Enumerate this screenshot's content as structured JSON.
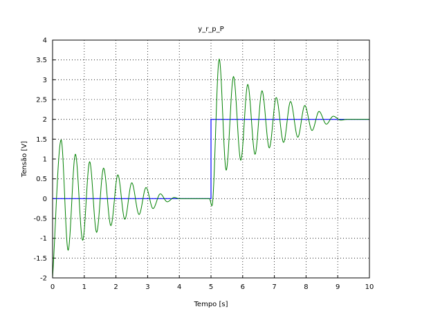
{
  "chart_data": {
    "type": "line",
    "title": "y_r_p_P",
    "xlabel": "Tempo [s]",
    "ylabel": "Tensão [V]",
    "xlim": [
      0,
      10
    ],
    "ylim": [
      -2,
      4
    ],
    "xticks": [
      "0",
      "1",
      "2",
      "3",
      "4",
      "5",
      "6",
      "7",
      "8",
      "9",
      "10"
    ],
    "yticks": [
      "-2",
      "-1.5",
      "-1",
      "-0.5",
      "0",
      "0.5",
      "1",
      "1.5",
      "2",
      "2.5",
      "3",
      "3.5",
      "4"
    ],
    "grid": true,
    "series": [
      {
        "role": "reference (step)",
        "color": "#0000ff",
        "x": [
          0,
          5,
          5,
          10
        ],
        "y": [
          0,
          0,
          2,
          2
        ]
      },
      {
        "role": "response",
        "color": "#008000",
        "x": [
          0,
          0.27,
          0.49,
          0.72,
          0.95,
          1.17,
          1.39,
          1.61,
          1.84,
          2.06,
          2.28,
          2.5,
          2.73,
          2.95,
          3.17,
          3.4,
          3.62,
          3.84,
          4.0,
          4.5,
          4.95,
          5.03,
          5.26,
          5.48,
          5.71,
          5.94,
          6.16,
          6.39,
          6.61,
          6.84,
          7.06,
          7.29,
          7.51,
          7.74,
          7.96,
          8.19,
          8.41,
          8.64,
          8.86,
          9.09,
          9.3,
          10
        ],
        "y": [
          -2.0,
          1.48,
          -1.3,
          1.12,
          -1.05,
          0.93,
          -0.85,
          0.77,
          -0.68,
          0.6,
          -0.52,
          0.4,
          -0.4,
          0.28,
          -0.25,
          0.12,
          -0.08,
          0.03,
          0.0,
          0.0,
          0.0,
          -0.18,
          3.52,
          0.72,
          3.08,
          0.97,
          2.88,
          1.12,
          2.72,
          1.28,
          2.55,
          1.42,
          2.45,
          1.55,
          2.35,
          1.72,
          2.2,
          1.88,
          2.08,
          1.98,
          2.0,
          2.0
        ]
      }
    ]
  }
}
